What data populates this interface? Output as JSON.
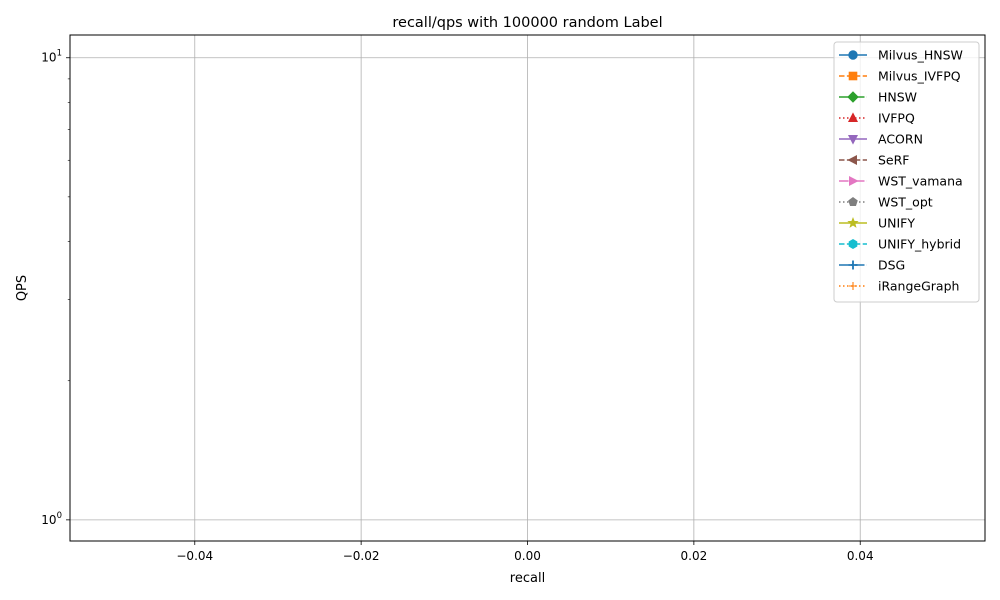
{
  "chart_data": {
    "type": "line",
    "title": "recall/qps with 100000 random Label",
    "xlabel": "recall",
    "ylabel": "QPS",
    "xlim": [
      -0.055,
      0.055
    ],
    "ylim": [
      0.9,
      11.2
    ],
    "yscale": "log",
    "grid": true,
    "legend_position": "top-right",
    "x_ticks": [
      {
        "value": -0.04,
        "label": "−0.04"
      },
      {
        "value": -0.02,
        "label": "−0.02"
      },
      {
        "value": 0.0,
        "label": "0.00"
      },
      {
        "value": 0.02,
        "label": "0.02"
      },
      {
        "value": 0.04,
        "label": "0.04"
      }
    ],
    "y_ticks": [
      {
        "value": 1,
        "base": "10",
        "exp": "0"
      },
      {
        "value": 10,
        "base": "10",
        "exp": "1"
      }
    ],
    "series": [
      {
        "name": "Milvus_HNSW",
        "color": "#1f77b4",
        "marker": "circle",
        "dash": "solid",
        "x": [],
        "y": []
      },
      {
        "name": "Milvus_IVFPQ",
        "color": "#ff7f0e",
        "marker": "square",
        "dash": "dashed",
        "x": [],
        "y": []
      },
      {
        "name": "HNSW",
        "color": "#2ca02c",
        "marker": "diamond",
        "dash": "dashdot",
        "x": [],
        "y": []
      },
      {
        "name": "IVFPQ",
        "color": "#d62728",
        "marker": "triangle-up",
        "dash": "dotted",
        "x": [],
        "y": []
      },
      {
        "name": "ACORN",
        "color": "#9467bd",
        "marker": "triangle-down",
        "dash": "solid",
        "x": [],
        "y": []
      },
      {
        "name": "SeRF",
        "color": "#8c564b",
        "marker": "triangle-left",
        "dash": "dashed",
        "x": [],
        "y": []
      },
      {
        "name": "WST_vamana",
        "color": "#e377c2",
        "marker": "triangle-right",
        "dash": "dashdot",
        "x": [],
        "y": []
      },
      {
        "name": "WST_opt",
        "color": "#7f7f7f",
        "marker": "pentagon",
        "dash": "dotted",
        "x": [],
        "y": []
      },
      {
        "name": "UNIFY",
        "color": "#bcbd22",
        "marker": "star",
        "dash": "solid",
        "x": [],
        "y": []
      },
      {
        "name": "UNIFY_hybrid",
        "color": "#17becf",
        "marker": "hexagon",
        "dash": "dashed",
        "x": [],
        "y": []
      },
      {
        "name": "DSG",
        "color": "#1f77b4",
        "marker": "plus",
        "dash": "dashdot",
        "x": [],
        "y": []
      },
      {
        "name": "iRangeGraph",
        "color": "#ff7f0e",
        "marker": "plus-thin",
        "dash": "dotted",
        "x": [],
        "y": []
      }
    ]
  }
}
